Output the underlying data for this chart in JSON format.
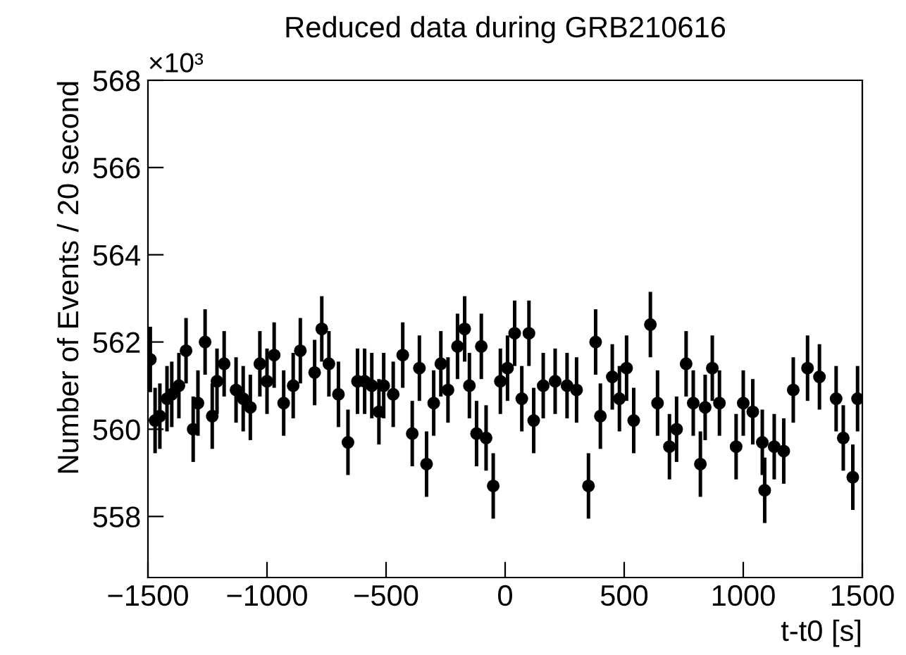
{
  "chart_data": {
    "type": "scatter",
    "title": "Reduced data during GRB210616",
    "xlabel": "t-t0 [s]",
    "ylabel": "Number of Events / 20 second",
    "annotations": [
      "×10³"
    ],
    "x": [
      -1490,
      -1470,
      -1450,
      -1420,
      -1400,
      -1370,
      -1340,
      -1310,
      -1290,
      -1260,
      -1230,
      -1210,
      -1180,
      -1130,
      -1100,
      -1070,
      -1030,
      -1000,
      -970,
      -930,
      -890,
      -860,
      -800,
      -770,
      -740,
      -700,
      -660,
      -620,
      -590,
      -560,
      -530,
      -510,
      -470,
      -430,
      -390,
      -360,
      -330,
      -300,
      -270,
      -240,
      -200,
      -170,
      -150,
      -120,
      -100,
      -80,
      -50,
      -20,
      10,
      40,
      70,
      100,
      120,
      160,
      210,
      260,
      300,
      350,
      380,
      400,
      450,
      480,
      510,
      540,
      610,
      640,
      690,
      720,
      760,
      790,
      820,
      840,
      870,
      900,
      970,
      1000,
      1040,
      1080,
      1090,
      1130,
      1170,
      1210,
      1270,
      1320,
      1390,
      1420,
      1460,
      1480
    ],
    "values": [
      561.6,
      560.2,
      560.3,
      560.7,
      560.8,
      561.0,
      561.8,
      560.0,
      560.6,
      562.0,
      560.3,
      561.1,
      561.5,
      560.9,
      560.7,
      560.5,
      561.5,
      561.1,
      561.7,
      560.6,
      561.0,
      561.8,
      561.3,
      562.3,
      561.5,
      560.8,
      559.7,
      561.1,
      561.1,
      561.0,
      560.4,
      561.0,
      560.8,
      561.7,
      559.9,
      561.4,
      559.2,
      560.6,
      561.5,
      560.9,
      561.9,
      562.3,
      561.0,
      559.9,
      561.9,
      559.8,
      558.7,
      561.1,
      561.4,
      562.2,
      560.7,
      562.2,
      560.2,
      561.0,
      561.1,
      561.0,
      560.9,
      558.7,
      562.0,
      560.3,
      561.2,
      560.7,
      561.4,
      560.2,
      562.4,
      560.6,
      559.6,
      560.0,
      561.5,
      560.6,
      559.2,
      560.5,
      561.4,
      560.6,
      559.6,
      560.6,
      560.4,
      559.7,
      558.6,
      559.6,
      559.5,
      560.9,
      561.4,
      561.2,
      560.7,
      559.8,
      558.9,
      560.7
    ],
    "errors": [
      0.75,
      0.75,
      0.75,
      0.75,
      0.75,
      0.75,
      0.75,
      0.75,
      0.75,
      0.75,
      0.75,
      0.75,
      0.75,
      0.75,
      0.75,
      0.75,
      0.75,
      0.75,
      0.75,
      0.75,
      0.75,
      0.75,
      0.75,
      0.75,
      0.75,
      0.75,
      0.75,
      0.75,
      0.75,
      0.75,
      0.75,
      0.75,
      0.75,
      0.75,
      0.75,
      0.75,
      0.75,
      0.75,
      0.75,
      0.75,
      0.75,
      0.75,
      0.75,
      0.75,
      0.75,
      0.75,
      0.75,
      0.75,
      0.75,
      0.75,
      0.75,
      0.75,
      0.75,
      0.75,
      0.75,
      0.75,
      0.75,
      0.75,
      0.75,
      0.75,
      0.75,
      0.75,
      0.75,
      0.75,
      0.75,
      0.75,
      0.75,
      0.75,
      0.75,
      0.75,
      0.75,
      0.75,
      0.75,
      0.75,
      0.75,
      0.75,
      0.75,
      0.75,
      0.75,
      0.75,
      0.75,
      0.75,
      0.75,
      0.75,
      0.75,
      0.75,
      0.75,
      0.75
    ],
    "color": "#000000",
    "marker": "circle",
    "grid": false,
    "legend": false,
    "xlim": [
      -1500,
      1500
    ],
    "xticks": [
      {
        "value": -1500,
        "label": "−1500"
      },
      {
        "value": -1000,
        "label": "−1000"
      },
      {
        "value": -500,
        "label": "−500"
      },
      0,
      500,
      1000,
      1500
    ],
    "ylim": [
      556.6,
      568
    ],
    "yticks": [
      558,
      560,
      562,
      564,
      566,
      568
    ]
  }
}
